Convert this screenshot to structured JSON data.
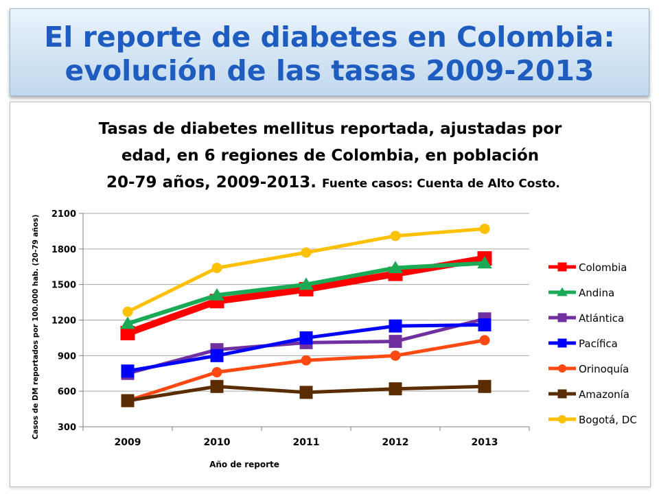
{
  "slide_title": {
    "line1": "El reporte de diabetes en Colombia:",
    "line2": "evolución de las tasas 2009-2013"
  },
  "chart_data": {
    "type": "line",
    "title_lines": [
      "Tasas de diabetes mellitus reportada, ajustadas por",
      "edad, en 6 regiones de Colombia, en población",
      "20-79 años, 2009-2013."
    ],
    "title_note": "Fuente casos: Cuenta de Alto Costo.",
    "xlabel": "Año de reporte",
    "ylabel": "Casos de DM reportados por 100.000 hab. (20-79 años)",
    "categories": [
      "2009",
      "2010",
      "2011",
      "2012",
      "2013"
    ],
    "ylim": [
      300,
      2100
    ],
    "yticks": [
      300,
      600,
      900,
      1200,
      1500,
      1800,
      2100
    ],
    "grid": true,
    "legend": "right",
    "series": [
      {
        "name": "Colombia",
        "color": "#ff0000",
        "marker": "square",
        "values": [
          1090,
          1360,
          1460,
          1590,
          1720
        ]
      },
      {
        "name": "Andina",
        "color": "#1aaa55",
        "marker": "triangle",
        "values": [
          1170,
          1410,
          1500,
          1640,
          1680
        ]
      },
      {
        "name": "Atlántica",
        "color": "#7030a0",
        "marker": "square",
        "values": [
          750,
          950,
          1010,
          1020,
          1210
        ]
      },
      {
        "name": "Pacífica",
        "color": "#0000ff",
        "marker": "square",
        "values": [
          770,
          900,
          1050,
          1150,
          1160
        ]
      },
      {
        "name": "Orinoquía",
        "color": "#ff4a14",
        "marker": "circle",
        "values": [
          520,
          760,
          860,
          900,
          1030
        ]
      },
      {
        "name": "Amazonía",
        "color": "#5a2c00",
        "marker": "square",
        "values": [
          520,
          640,
          590,
          620,
          640
        ]
      },
      {
        "name": "Bogotá, DC",
        "color": "#ffc000",
        "marker": "circle",
        "values": [
          1270,
          1640,
          1770,
          1910,
          1970
        ]
      }
    ]
  }
}
